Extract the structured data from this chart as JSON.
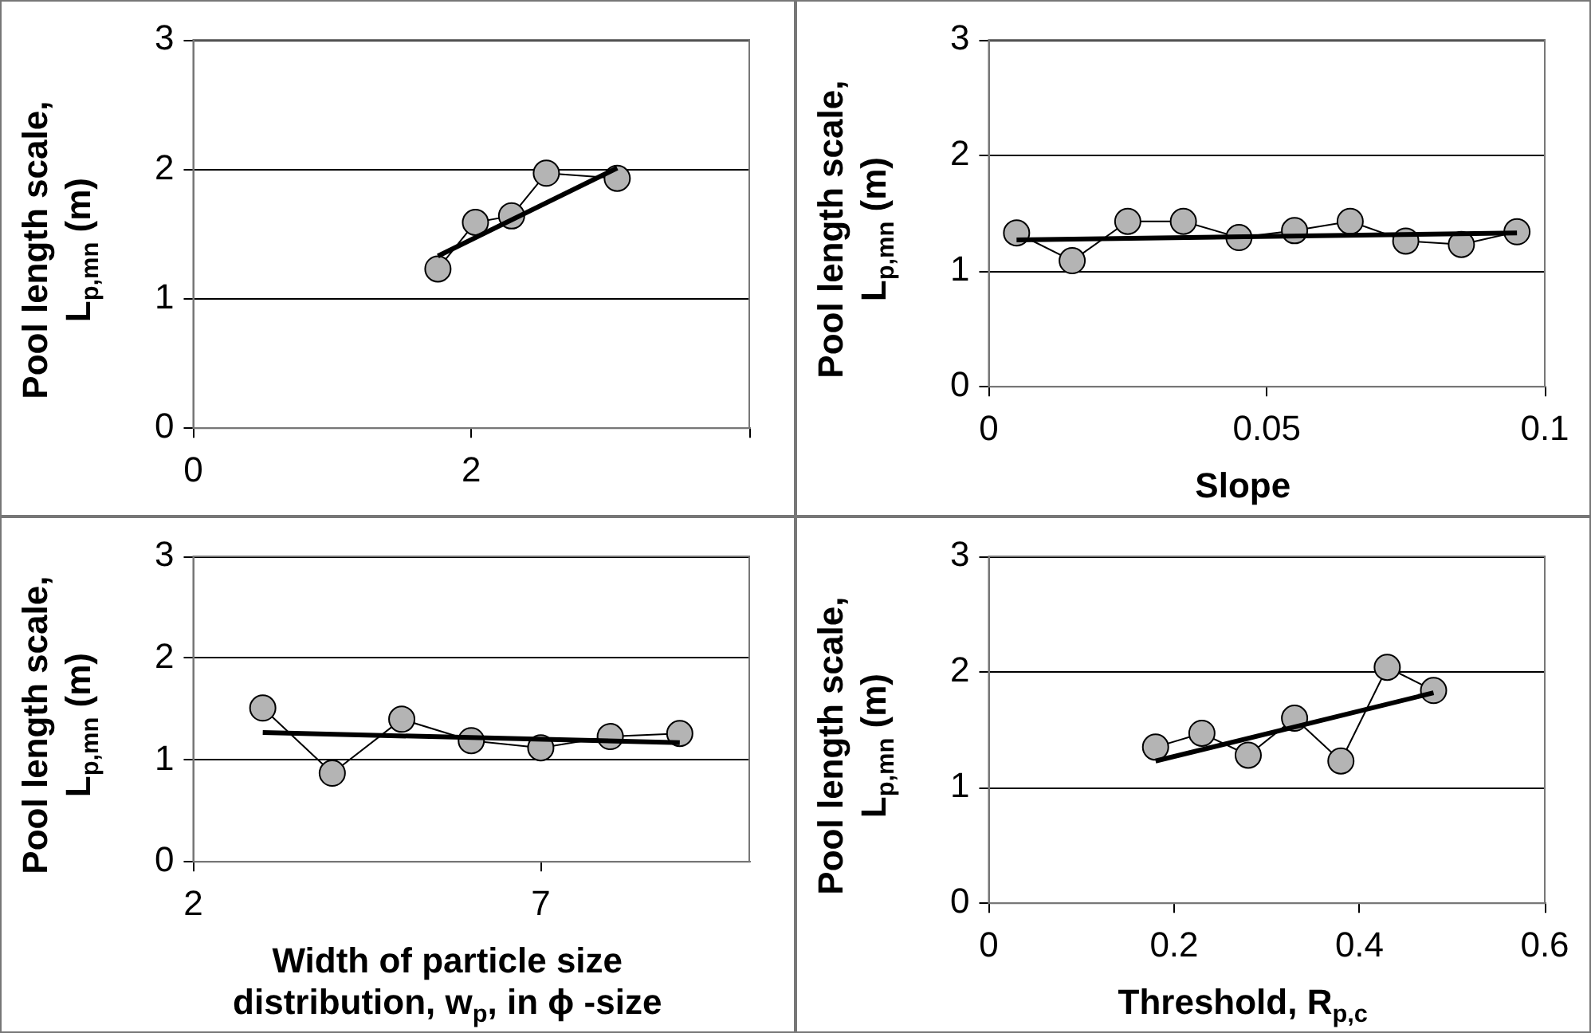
{
  "chart_data": [
    {
      "type": "line",
      "ylabel": "Pool length scale, L$_{p,mn}$ (m)",
      "xlim": [
        0,
        4
      ],
      "xticks": [
        0,
        2,
        {
          "value": 4,
          "label": null
        }
      ],
      "ylim": [
        0,
        3
      ],
      "yticks": [
        0,
        1,
        2,
        3
      ],
      "grid": "y",
      "series": [
        {
          "color": "#b4b4b4",
          "marker": "circle",
          "x": [
            1.76,
            2.03,
            2.29,
            2.54,
            3.05
          ],
          "values": [
            1.23,
            1.59,
            1.64,
            1.97,
            1.93
          ]
        },
        {
          "color": "#000000",
          "marker": "none",
          "x": [
            1.76,
            3.05
          ],
          "values": [
            1.33,
            2.01
          ]
        }
      ]
    },
    {
      "type": "line",
      "xlabel": "Slope",
      "ylabel": "Pool length scale, L$_{p,mn}$ (m)",
      "xlim": [
        0,
        0.1
      ],
      "xticks": [
        0,
        0.05,
        0.1
      ],
      "ylim": [
        0,
        3
      ],
      "yticks": [
        0,
        1,
        2,
        3
      ],
      "grid": "y",
      "series": [
        {
          "color": "#b4b4b4",
          "marker": "circle",
          "x": [
            0.005,
            0.015,
            0.025,
            0.035,
            0.045,
            0.055,
            0.065,
            0.075,
            0.085,
            0.095
          ],
          "values": [
            1.33,
            1.09,
            1.43,
            1.43,
            1.29,
            1.35,
            1.43,
            1.26,
            1.23,
            1.34
          ]
        },
        {
          "color": "#000000",
          "marker": "none",
          "x": [
            0.005,
            0.095
          ],
          "values": [
            1.27,
            1.33
          ]
        }
      ]
    },
    {
      "type": "line",
      "xlabel": "Width of particle size distribution, w$_{p}$, in ϕ -size",
      "ylabel": "Pool length scale, L$_{p,mn}$ (m)",
      "xlim": [
        2,
        10
      ],
      "xticks": [
        2,
        7
      ],
      "ylim": [
        0,
        3
      ],
      "yticks": [
        0,
        1,
        2,
        3
      ],
      "grid": "y",
      "series": [
        {
          "color": "#b4b4b4",
          "marker": "circle",
          "x": [
            3,
            4,
            5,
            6,
            7,
            8,
            9
          ],
          "values": [
            1.51,
            0.87,
            1.4,
            1.19,
            1.12,
            1.23,
            1.26
          ]
        },
        {
          "color": "#000000",
          "marker": "none",
          "x": [
            3,
            9
          ],
          "values": [
            1.27,
            1.17
          ]
        }
      ]
    },
    {
      "type": "line",
      "xlabel": "Threshold, R$_{p,c}$",
      "ylabel": "Pool length scale, L$_{p,mn}$ (m)",
      "xlim": [
        0,
        0.6
      ],
      "xticks": [
        0,
        0.2,
        0.4,
        0.6
      ],
      "ylim": [
        0,
        3
      ],
      "yticks": [
        0,
        1,
        2,
        3
      ],
      "grid": "y",
      "series": [
        {
          "color": "#b4b4b4",
          "marker": "circle",
          "x": [
            0.18,
            0.23,
            0.28,
            0.33,
            0.38,
            0.43,
            0.48
          ],
          "values": [
            1.35,
            1.47,
            1.28,
            1.6,
            1.23,
            2.04,
            1.84
          ]
        },
        {
          "color": "#000000",
          "marker": "none",
          "x": [
            0.18,
            0.48
          ],
          "values": [
            1.23,
            1.82
          ]
        }
      ]
    }
  ]
}
